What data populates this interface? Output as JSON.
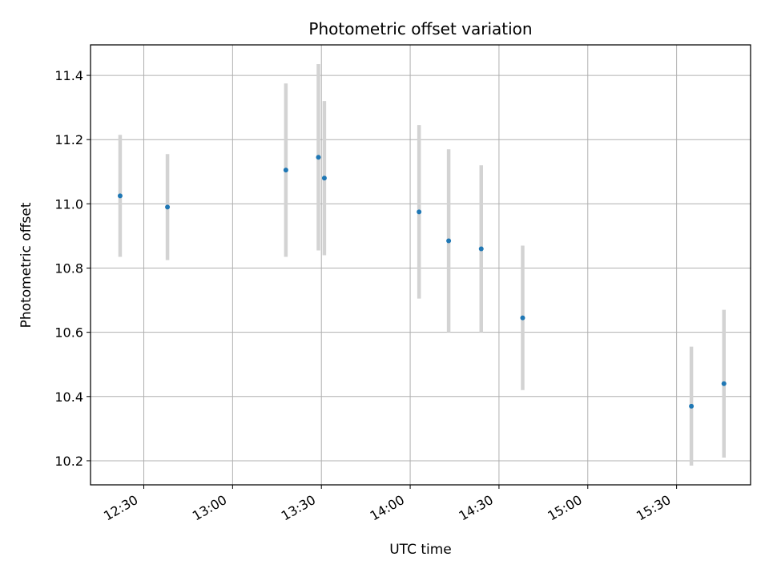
{
  "chart_data": {
    "type": "scatter",
    "title": "Photometric offset variation",
    "xlabel": "UTC time",
    "ylabel": "Photometric offset",
    "x_type": "time",
    "xlim": [
      "12:12",
      "15:55"
    ],
    "ylim": [
      10.125,
      11.495
    ],
    "x_ticks": [
      "12:30",
      "13:00",
      "13:30",
      "14:00",
      "14:30",
      "15:00",
      "15:30"
    ],
    "y_ticks": [
      "10.2",
      "10.4",
      "10.6",
      "10.8",
      "11.0",
      "11.2",
      "11.4"
    ],
    "grid": true,
    "point_color": "#1f77b4",
    "errorbar_color": "#d3d3d3",
    "points": [
      {
        "x": "12:22",
        "y": 11.025,
        "err": 0.19
      },
      {
        "x": "12:38",
        "y": 10.99,
        "err": 0.165
      },
      {
        "x": "13:18",
        "y": 11.105,
        "err": 0.27
      },
      {
        "x": "13:29",
        "y": 11.145,
        "err": 0.29
      },
      {
        "x": "13:31",
        "y": 11.08,
        "err": 0.24
      },
      {
        "x": "14:03",
        "y": 10.975,
        "err": 0.27
      },
      {
        "x": "14:13",
        "y": 10.885,
        "err": 0.285
      },
      {
        "x": "14:24",
        "y": 10.86,
        "err": 0.26
      },
      {
        "x": "14:38",
        "y": 10.645,
        "err": 0.225
      },
      {
        "x": "15:35",
        "y": 10.37,
        "err": 0.185
      },
      {
        "x": "15:46",
        "y": 10.44,
        "err": 0.23
      }
    ]
  }
}
